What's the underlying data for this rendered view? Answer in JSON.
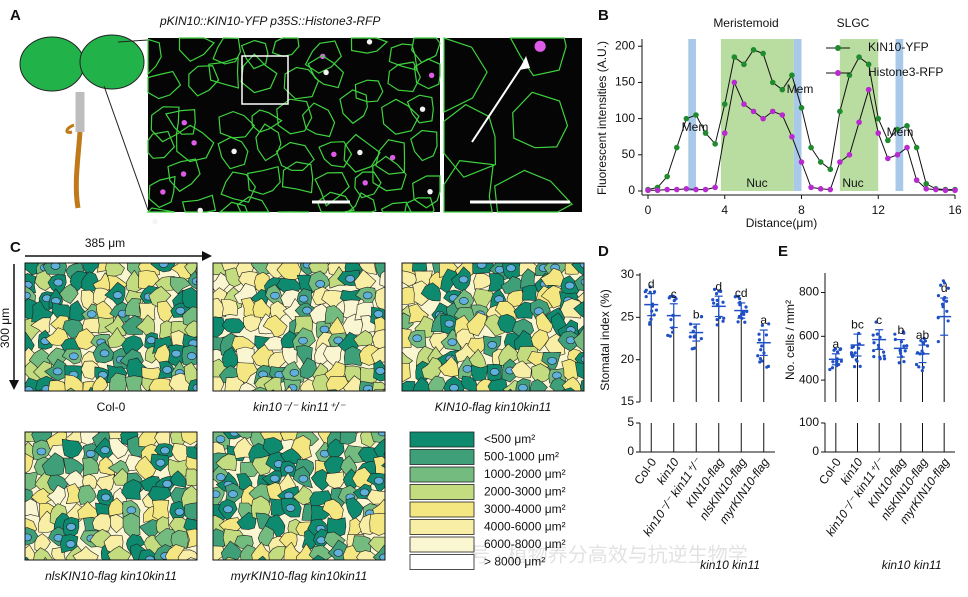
{
  "panel_a": {
    "label": "A",
    "title": "pKIN10::KIN10-YFP p35S::Histone3-RFP"
  },
  "panel_c": {
    "label": "C",
    "width_label": "385 μm",
    "height_label": "300 μm",
    "maps": [
      "Col-0",
      "kin10⁻/⁻ kin11⁺/⁻",
      "KIN10-flag kin10kin11",
      "nlsKIN10-flag kin10kin11",
      "myrKIN10-flag kin10kin11"
    ],
    "legend": [
      {
        "label": "<500 μm²",
        "color": "#0e8a6f"
      },
      {
        "label": "500-1000 μm²",
        "color": "#3f9f78"
      },
      {
        "label": "1000-2000 μm²",
        "color": "#74bb80"
      },
      {
        "label": "2000-3000 μm²",
        "color": "#c3dc80"
      },
      {
        "label": "3000-4000 μm²",
        "color": "#f4e680"
      },
      {
        "label": "4000-6000 μm²",
        "color": "#f8eea6"
      },
      {
        "label": "6000-8000 μm²",
        "color": "#fbf6d2"
      },
      {
        "label": "> 8000 μm²",
        "color": "#ffffff"
      }
    ]
  },
  "chart_data": [
    {
      "panel": "B",
      "type": "line",
      "x_label": "Distance(μm)",
      "y_label": "Fluorescent intensities (A.U.)",
      "x": [
        0,
        0.5,
        1,
        1.5,
        2,
        2.5,
        3,
        3.5,
        4,
        4.5,
        5,
        5.5,
        6,
        6.5,
        7,
        7.5,
        8,
        8.5,
        9,
        9.5,
        10,
        10.5,
        11,
        11.5,
        12,
        12.5,
        13,
        13.5,
        14,
        14.5,
        15,
        15.5,
        16
      ],
      "xlim": [
        0,
        16
      ],
      "xticks": [
        0,
        4,
        8,
        12,
        16
      ],
      "ylim": [
        0,
        210
      ],
      "yticks": [
        0,
        50,
        100,
        150,
        200
      ],
      "series": [
        {
          "name": "KIN10-YFP",
          "color": "#1f8a2e",
          "values": [
            2,
            5,
            20,
            60,
            100,
            105,
            80,
            65,
            120,
            185,
            175,
            195,
            190,
            150,
            140,
            160,
            115,
            60,
            40,
            30,
            110,
            160,
            185,
            175,
            100,
            70,
            85,
            90,
            60,
            10,
            3,
            2,
            2
          ]
        },
        {
          "name": "Histone3-RFP",
          "color": "#b82ad0",
          "values": [
            1,
            1,
            2,
            2,
            3,
            2,
            2,
            5,
            80,
            150,
            120,
            110,
            100,
            110,
            105,
            75,
            40,
            5,
            3,
            2,
            40,
            50,
            95,
            140,
            80,
            45,
            50,
            60,
            15,
            3,
            2,
            1,
            1
          ]
        }
      ],
      "highlights": [
        {
          "from": 3.8,
          "to": 7.6,
          "color": "#b9dca0"
        },
        {
          "from": 10,
          "to": 12,
          "color": "#b9dca0"
        },
        {
          "from": 2.1,
          "to": 2.5,
          "color": "#a9c9ea"
        },
        {
          "from": 7.6,
          "to": 8.0,
          "color": "#a9c9ea"
        },
        {
          "from": 12.9,
          "to": 13.3,
          "color": "#a9c9ea"
        }
      ],
      "annotations": [
        "Meristemoid",
        "SLGC",
        "Mem",
        "Mem",
        "Mem",
        "Nuc",
        "Nuc"
      ]
    },
    {
      "panel": "D",
      "type": "bar",
      "y_label": "Stomatal index (%)",
      "categories": [
        "Col-0",
        "kin10",
        "kin10⁻/⁻ kin11⁺/⁻",
        "KIN10-flag",
        "nlsKIN10-flag",
        "myrKIN10-flag"
      ],
      "group_label": "kin10 kin11",
      "values": [
        26.5,
        25.2,
        23.2,
        26.3,
        25.8,
        22.0
      ],
      "errors": [
        1.3,
        1.4,
        1.0,
        1.2,
        0.9,
        1.5
      ],
      "letters": [
        "d",
        "c",
        "b",
        "d",
        "cd",
        "a"
      ],
      "ylim": [
        15,
        30
      ],
      "yticks": [
        15,
        20,
        25,
        30
      ],
      "break_ylim": [
        0,
        5
      ],
      "break_yticks": [
        0,
        5
      ],
      "color": "#1f4fc4"
    },
    {
      "panel": "E",
      "type": "bar",
      "y_label": "No. cells / mm²",
      "categories": [
        "Col-0",
        "kin10",
        "kin10⁻/⁻ kin11⁺/⁻",
        "KIN10-flag",
        "nlsKIN10-flag",
        "myrKIN10-flag"
      ],
      "group_label": "kin10 kin11",
      "values": [
        495,
        560,
        585,
        545,
        520,
        690
      ],
      "errors": [
        25,
        50,
        45,
        40,
        40,
        85
      ],
      "letters": [
        "a",
        "bc",
        "c",
        "b",
        "ab",
        "d"
      ],
      "ylim": [
        300,
        880
      ],
      "yticks": [
        400,
        600,
        800
      ],
      "break_ylim": [
        0,
        100
      ],
      "break_yticks": [
        0,
        100
      ],
      "color": "#1f4fc4"
    }
  ],
  "watermark": "号 · 植物养分高效与抗逆生物学"
}
